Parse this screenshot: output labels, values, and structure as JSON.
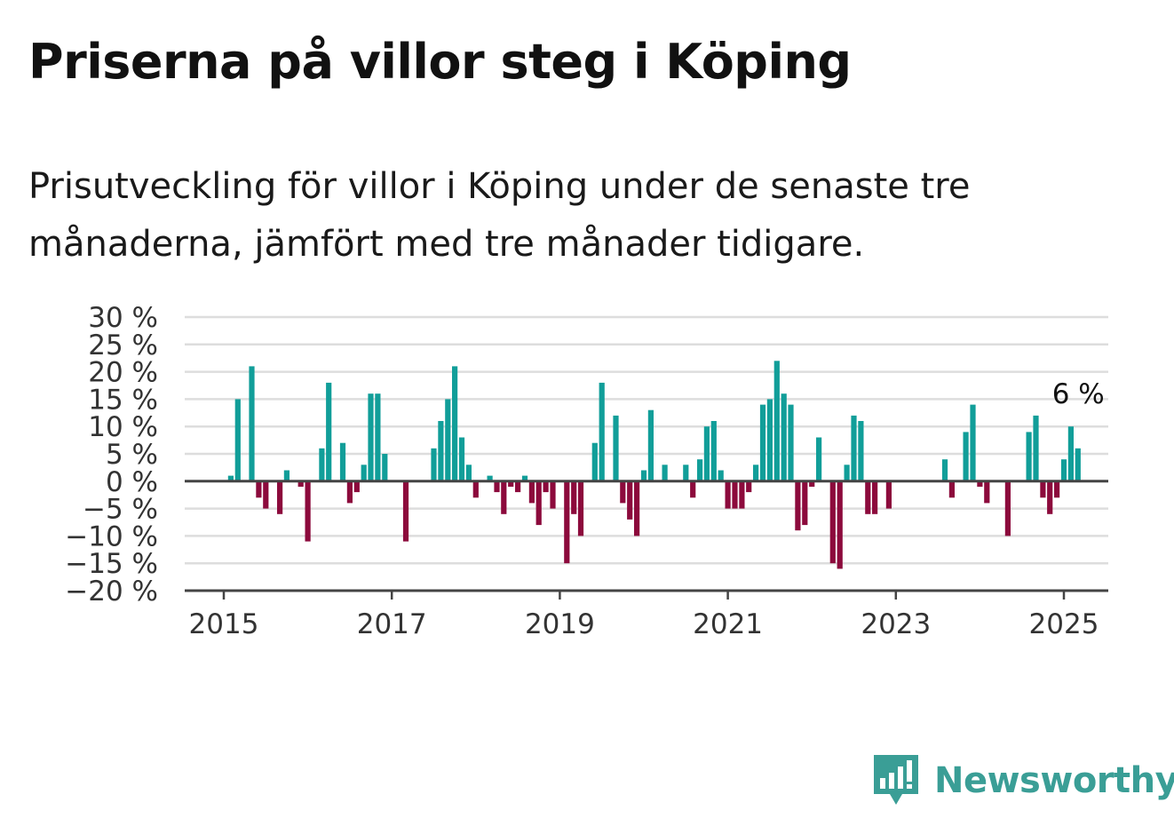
{
  "title": "Priserna på villor steg i Köping",
  "subtitle": "Prisutveckling för villor i Köping under de senaste tre månaderna, jämfört med tre månader tidigare.",
  "brand": {
    "name": "Newsworthy",
    "color": "#3a9e96"
  },
  "colors": {
    "positive": "#119e99",
    "negative": "#8c0a3c",
    "grid": "#dddddd",
    "zero": "#444444"
  },
  "chart_data": {
    "type": "bar",
    "x_start": "2015-01",
    "x_step": "month",
    "ylim": [
      -20,
      30
    ],
    "y_ticks": [
      30,
      25,
      20,
      15,
      10,
      5,
      0,
      -5,
      -10,
      -15,
      -20
    ],
    "y_tick_labels": [
      "30 %",
      "25 %",
      "20 %",
      "15 %",
      "10 %",
      "5 %",
      "0 %",
      "−5 %",
      "−10 %",
      "−15 %",
      "−20 %"
    ],
    "x_ticks": [
      2015,
      2017,
      2019,
      2021,
      2023,
      2025
    ],
    "x_tick_labels": [
      "2015",
      "2017",
      "2019",
      "2021",
      "2023",
      "2025"
    ],
    "grid": true,
    "annotation": {
      "text": "6 %",
      "value": 6
    },
    "values": [
      0,
      1,
      15,
      0,
      21,
      -3,
      -5,
      0,
      -6,
      2,
      0,
      -1,
      -11,
      0,
      6,
      18,
      0,
      7,
      -4,
      -2,
      3,
      16,
      16,
      5,
      0,
      0,
      -11,
      0,
      0,
      0,
      6,
      11,
      15,
      21,
      8,
      3,
      -3,
      0,
      1,
      -2,
      -6,
      -1,
      -2,
      1,
      -4,
      -8,
      -2,
      -5,
      0,
      -15,
      -6,
      -10,
      0,
      7,
      18,
      0,
      12,
      -4,
      -7,
      -10,
      2,
      13,
      0,
      3,
      0,
      0,
      3,
      -3,
      4,
      10,
      11,
      2,
      -5,
      -5,
      -5,
      -2,
      3,
      14,
      15,
      22,
      16,
      14,
      -9,
      -8,
      -1,
      8,
      0,
      -15,
      -16,
      3,
      12,
      11,
      -6,
      -6,
      0,
      -5,
      0,
      0,
      0,
      0,
      0,
      0,
      0,
      4,
      -3,
      0,
      9,
      14,
      -1,
      -4,
      0,
      0,
      -10,
      0,
      0,
      9,
      12,
      -3,
      -6,
      -3,
      4,
      10,
      6
    ]
  }
}
